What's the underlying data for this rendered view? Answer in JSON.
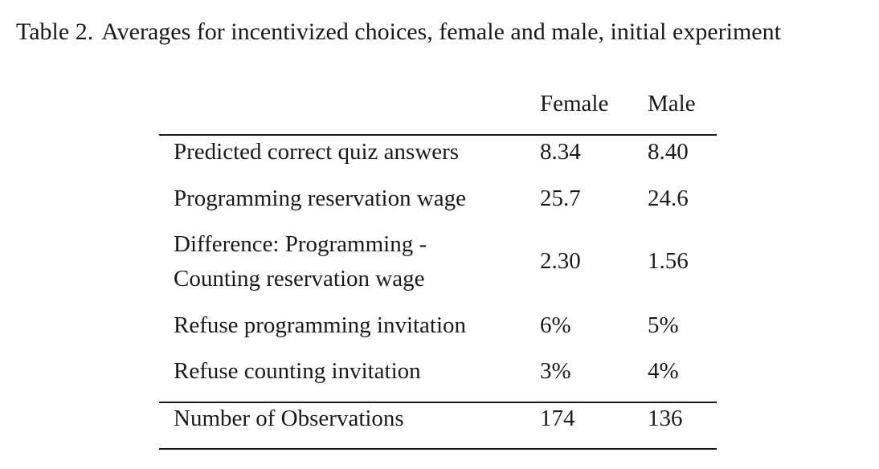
{
  "caption": {
    "label": "Table 2.",
    "text": "Averages for incentivized choices, female and male, initial experiment"
  },
  "table": {
    "columns": [
      "",
      "Female",
      "Male"
    ],
    "rows": [
      {
        "label_lines": [
          "Predicted correct quiz answers"
        ],
        "female": "8.34",
        "male": "8.40"
      },
      {
        "label_lines": [
          "Programming reservation wage"
        ],
        "female": "25.7",
        "male": "24.6"
      },
      {
        "label_lines": [
          "Difference: Programming -",
          "Counting reservation wage"
        ],
        "female": "2.30",
        "male": "1.56"
      },
      {
        "label_lines": [
          "Refuse programming invitation"
        ],
        "female": "6%",
        "male": "5%"
      },
      {
        "label_lines": [
          "Refuse counting invitation"
        ],
        "female": "3%",
        "male": "4%"
      }
    ],
    "footer": {
      "label": "Number of Observations",
      "female": "174",
      "male": "136"
    }
  }
}
